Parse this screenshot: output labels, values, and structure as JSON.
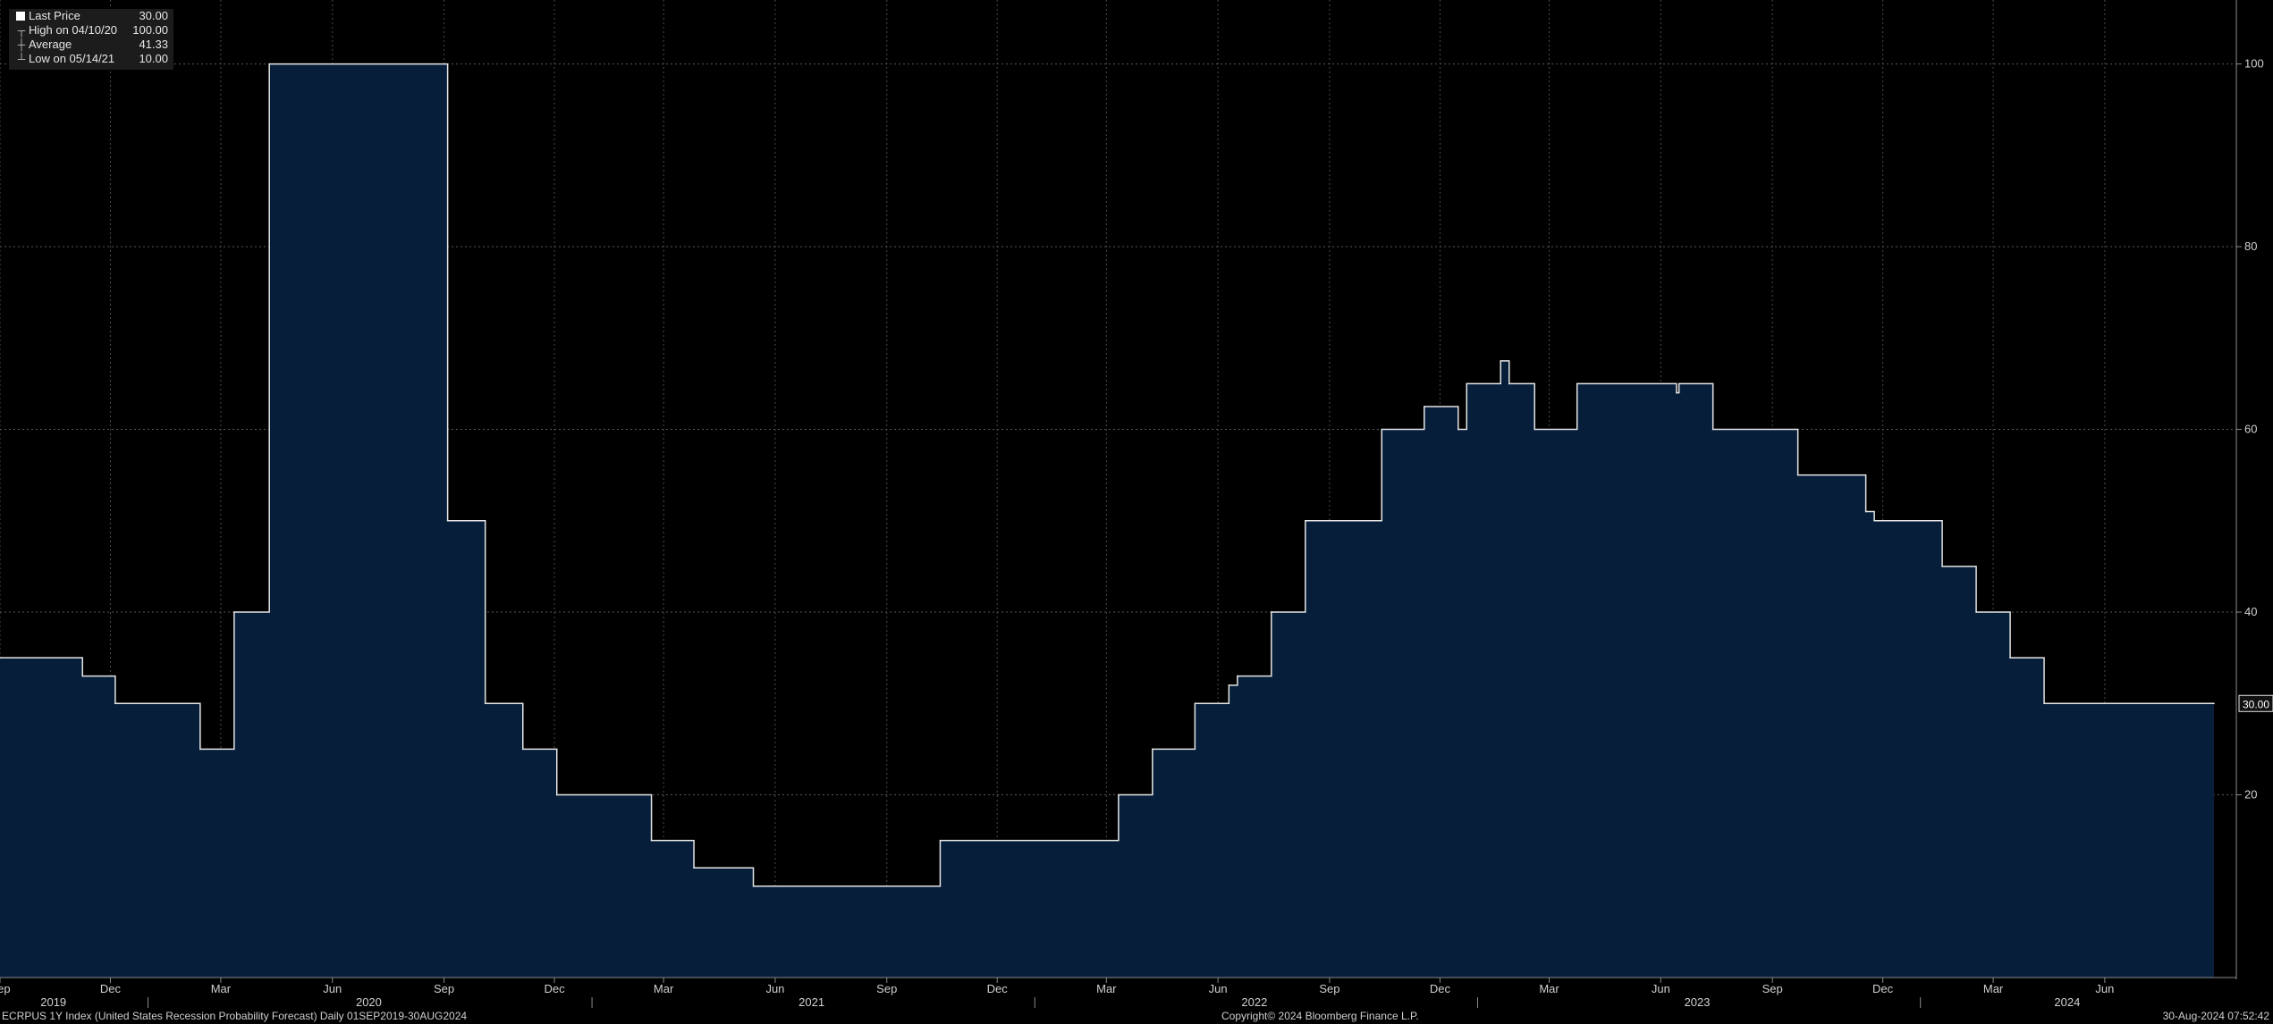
{
  "legend": {
    "items": [
      {
        "label": "Last Price",
        "value": "30.00"
      },
      {
        "label": "High on 04/10/20",
        "value": "100.00"
      },
      {
        "label": "Average",
        "value": "41.33"
      },
      {
        "label": "Low on 05/14/21",
        "value": "10.00"
      }
    ]
  },
  "footer": {
    "left": "ECRPUS 1Y Index (United States Recession Probability Forecast)  Daily 01SEP2019-30AUG2024",
    "center": "Copyright© 2024 Bloomberg Finance L.P.",
    "right": "30-Aug-2024 07:52:42"
  },
  "colors": {
    "background": "#000000",
    "fill": "#061e3a",
    "line": "#e6e6e6"
  },
  "chart_data": {
    "type": "area",
    "title": "",
    "xlabel": "",
    "ylabel": "",
    "ylim": [
      0,
      107
    ],
    "yticks": [
      20,
      40,
      60,
      80,
      100
    ],
    "last_value_label": "30.00",
    "grid": true,
    "x_month_labels": [
      {
        "date": "2019-09-01",
        "label": "Sep"
      },
      {
        "date": "2019-12-01",
        "label": "Dec"
      },
      {
        "date": "2020-03-01",
        "label": "Mar"
      },
      {
        "date": "2020-06-01",
        "label": "Jun"
      },
      {
        "date": "2020-09-01",
        "label": "Sep"
      },
      {
        "date": "2020-12-01",
        "label": "Dec"
      },
      {
        "date": "2021-03-01",
        "label": "Mar"
      },
      {
        "date": "2021-06-01",
        "label": "Jun"
      },
      {
        "date": "2021-09-01",
        "label": "Sep"
      },
      {
        "date": "2021-12-01",
        "label": "Dec"
      },
      {
        "date": "2022-03-01",
        "label": "Mar"
      },
      {
        "date": "2022-06-01",
        "label": "Jun"
      },
      {
        "date": "2022-09-01",
        "label": "Sep"
      },
      {
        "date": "2022-12-01",
        "label": "Dec"
      },
      {
        "date": "2023-03-01",
        "label": "Mar"
      },
      {
        "date": "2023-06-01",
        "label": "Jun"
      },
      {
        "date": "2023-09-01",
        "label": "Sep"
      },
      {
        "date": "2023-12-01",
        "label": "Dec"
      },
      {
        "date": "2024-03-01",
        "label": "Mar"
      },
      {
        "date": "2024-06-01",
        "label": "Jun"
      }
    ],
    "x_year_labels": [
      {
        "date": "2019-10-15",
        "label": "2019"
      },
      {
        "date": "2020-07-01",
        "label": "2020"
      },
      {
        "date": "2021-07-01",
        "label": "2021"
      },
      {
        "date": "2022-07-01",
        "label": "2022"
      },
      {
        "date": "2023-07-01",
        "label": "2023"
      },
      {
        "date": "2024-05-01",
        "label": "2024"
      }
    ],
    "x_year_separators": [
      "2020-01-01",
      "2021-01-01",
      "2022-01-01",
      "2023-01-01",
      "2024-01-01"
    ],
    "series": [
      {
        "points": [
          [
            "2019-09-01",
            35
          ],
          [
            "2019-11-08",
            33
          ],
          [
            "2019-12-05",
            30
          ],
          [
            "2020-02-13",
            25
          ],
          [
            "2020-03-12",
            40
          ],
          [
            "2020-04-10",
            100
          ],
          [
            "2020-09-04",
            50
          ],
          [
            "2020-10-05",
            30
          ],
          [
            "2020-11-05",
            25
          ],
          [
            "2020-12-03",
            20
          ],
          [
            "2021-02-19",
            15
          ],
          [
            "2021-03-26",
            12
          ],
          [
            "2021-05-14",
            10
          ],
          [
            "2021-10-15",
            15
          ],
          [
            "2022-03-11",
            20
          ],
          [
            "2022-04-08",
            25
          ],
          [
            "2022-05-13",
            30
          ],
          [
            "2022-06-10",
            32
          ],
          [
            "2022-06-17",
            33
          ],
          [
            "2022-07-15",
            40
          ],
          [
            "2022-08-12",
            50
          ],
          [
            "2022-10-14",
            60
          ],
          [
            "2022-11-18",
            62.5
          ],
          [
            "2022-12-16",
            60
          ],
          [
            "2022-12-23",
            65
          ],
          [
            "2023-01-20",
            67.5
          ],
          [
            "2023-01-27",
            65
          ],
          [
            "2023-02-17",
            60
          ],
          [
            "2023-03-24",
            65
          ],
          [
            "2023-06-14",
            64
          ],
          [
            "2023-06-16",
            65
          ],
          [
            "2023-07-14",
            60
          ],
          [
            "2023-09-22",
            55
          ],
          [
            "2023-11-17",
            51
          ],
          [
            "2023-11-24",
            50
          ],
          [
            "2024-01-19",
            45
          ],
          [
            "2024-02-16",
            40
          ],
          [
            "2024-03-15",
            35
          ],
          [
            "2024-04-12",
            30
          ],
          [
            "2024-08-30",
            30
          ]
        ]
      }
    ]
  }
}
